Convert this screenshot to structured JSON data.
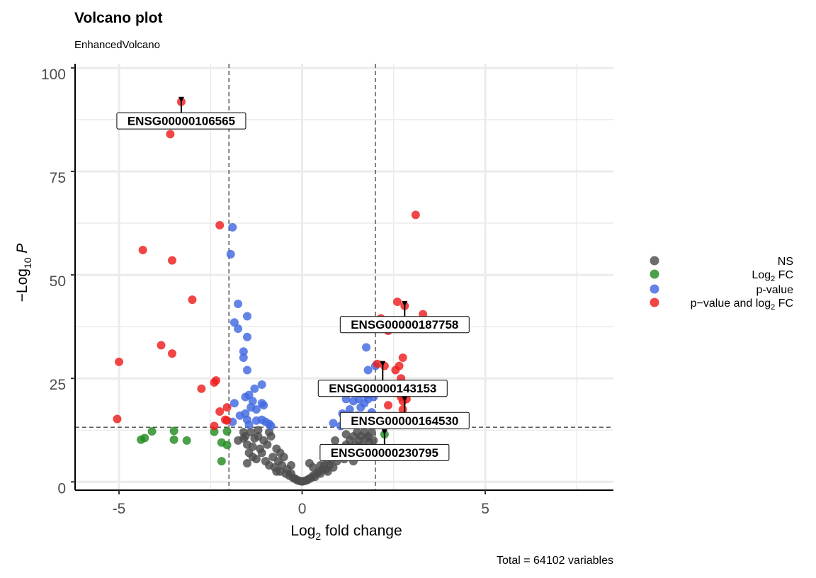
{
  "chart_data": {
    "type": "scatter",
    "title": "Volcano plot",
    "subtitle": "EnhancedVolcano",
    "xlabel": "Log2 fold change",
    "ylabel": "−Log10 P",
    "caption": "Total = 64102 variables",
    "xlim": [
      -6.2,
      8.5
    ],
    "ylim": [
      -2,
      101
    ],
    "x_ticks": [
      -5,
      0,
      5
    ],
    "y_ticks": [
      0,
      25,
      50,
      75,
      100
    ],
    "grid": true,
    "legend_position": "right",
    "thresholds": {
      "log2fc": [
        -2,
        2
      ],
      "neglog10p": 13.2
    },
    "series": [
      {
        "name": "NS",
        "color": "#4d4d4d",
        "points": [
          [
            -1.6,
            10.5
          ],
          [
            -1.55,
            11
          ],
          [
            -1.5,
            9
          ],
          [
            -1.45,
            7
          ],
          [
            -1.4,
            12
          ],
          [
            -1.35,
            8.5
          ],
          [
            -1.3,
            10.5
          ],
          [
            -1.25,
            5.5
          ],
          [
            -1.2,
            11
          ],
          [
            -1.15,
            8
          ],
          [
            -1.1,
            7
          ],
          [
            -1.05,
            10
          ],
          [
            -1.0,
            5
          ],
          [
            -0.95,
            9
          ],
          [
            -0.9,
            4
          ],
          [
            -0.85,
            11
          ],
          [
            -0.8,
            6
          ],
          [
            -0.75,
            3.5
          ],
          [
            -0.7,
            8
          ],
          [
            -0.65,
            5
          ],
          [
            -0.6,
            2.5
          ],
          [
            -0.55,
            4
          ],
          [
            -0.5,
            6
          ],
          [
            -0.45,
            2
          ],
          [
            -0.4,
            3
          ],
          [
            -0.35,
            1.5
          ],
          [
            -0.3,
            2
          ],
          [
            -0.25,
            1
          ],
          [
            -0.2,
            0.8
          ],
          [
            -0.15,
            0.5
          ],
          [
            -0.1,
            0.3
          ],
          [
            -0.05,
            0.2
          ],
          [
            0,
            0.1
          ],
          [
            0.05,
            0.2
          ],
          [
            0.1,
            0.3
          ],
          [
            0.15,
            0.5
          ],
          [
            0.2,
            0.8
          ],
          [
            0.25,
            1
          ],
          [
            0.3,
            1.5
          ],
          [
            0.35,
            1.2
          ],
          [
            0.4,
            2
          ],
          [
            0.45,
            2.5
          ],
          [
            0.5,
            2
          ],
          [
            0.55,
            3
          ],
          [
            0.6,
            4
          ],
          [
            0.65,
            3
          ],
          [
            0.7,
            5
          ],
          [
            0.75,
            4
          ],
          [
            0.8,
            5.5
          ],
          [
            0.85,
            3.5
          ],
          [
            0.9,
            6
          ],
          [
            0.95,
            5
          ],
          [
            1.0,
            7
          ],
          [
            1.05,
            6
          ],
          [
            1.1,
            8
          ],
          [
            1.15,
            5.5
          ],
          [
            1.2,
            9
          ],
          [
            1.25,
            7
          ],
          [
            1.3,
            10
          ],
          [
            1.35,
            8
          ],
          [
            1.4,
            11
          ],
          [
            1.45,
            9
          ],
          [
            1.5,
            12
          ],
          [
            1.55,
            10
          ],
          [
            1.6,
            11
          ],
          [
            1.65,
            9
          ],
          [
            1.7,
            12
          ],
          [
            1.75,
            10.5
          ],
          [
            1.8,
            11
          ],
          [
            1.85,
            9.5
          ],
          [
            1.9,
            12
          ],
          [
            1.95,
            10
          ],
          [
            0.2,
            4.5
          ],
          [
            0.5,
            4
          ],
          [
            -0.9,
            12
          ],
          [
            -1.2,
            12.5
          ],
          [
            -1.6,
            12
          ],
          [
            1.2,
            11.5
          ],
          [
            0.9,
            10
          ],
          [
            0.6,
            8
          ],
          [
            0.3,
            3.5
          ],
          [
            -0.3,
            4
          ],
          [
            -0.6,
            7
          ],
          [
            -1.35,
            6
          ],
          [
            -1.75,
            10
          ],
          [
            1.75,
            7.5
          ],
          [
            -1.5,
            4.5
          ],
          [
            1.4,
            5
          ],
          [
            -0.7,
            2.5
          ],
          [
            0.7,
            2.5
          ]
        ]
      },
      {
        "name": "Log2 FC",
        "color": "#238b22",
        "points": [
          [
            -4.4,
            10.2
          ],
          [
            -4.3,
            10.6
          ],
          [
            -4.1,
            12.2
          ],
          [
            -3.5,
            12.3
          ],
          [
            -3.5,
            10.2
          ],
          [
            -3.15,
            10
          ],
          [
            -2.4,
            12.1
          ],
          [
            -2.2,
            9.5
          ],
          [
            -2.05,
            8.9
          ],
          [
            -2.05,
            12.2
          ],
          [
            -2.2,
            5
          ],
          [
            2.25,
            11.5
          ]
        ]
      },
      {
        "name": "p-value",
        "color": "#4169e1",
        "points": [
          [
            -1.9,
            61.5
          ],
          [
            -1.95,
            55
          ],
          [
            -1.75,
            43
          ],
          [
            -1.85,
            38.5
          ],
          [
            -1.75,
            37
          ],
          [
            -1.5,
            40
          ],
          [
            -1.5,
            35
          ],
          [
            -1.6,
            31.5
          ],
          [
            -1.6,
            30
          ],
          [
            -1.5,
            27
          ],
          [
            -1.1,
            23.5
          ],
          [
            -1.3,
            22.5
          ],
          [
            -1.45,
            21
          ],
          [
            -1.55,
            20.5
          ],
          [
            -1.35,
            19.5
          ],
          [
            -1.1,
            19
          ],
          [
            -1.05,
            18.5
          ],
          [
            -1.25,
            17.5
          ],
          [
            -1.4,
            18
          ],
          [
            -1.55,
            16.5
          ],
          [
            -1.7,
            16
          ],
          [
            -1.25,
            14.8
          ],
          [
            -1.1,
            15
          ],
          [
            -0.9,
            14
          ],
          [
            -0.85,
            13.5
          ],
          [
            -1.0,
            14.5
          ],
          [
            -1.5,
            15
          ],
          [
            -1.45,
            13.8
          ],
          [
            -1.9,
            14.5
          ],
          [
            -1.85,
            19
          ],
          [
            1.75,
            32.5
          ],
          [
            2.0,
            28
          ],
          [
            1.8,
            27
          ],
          [
            1.2,
            20
          ],
          [
            1.4,
            19.5
          ],
          [
            1.55,
            20
          ],
          [
            1.7,
            19
          ],
          [
            1.8,
            20
          ],
          [
            1.95,
            20.5
          ],
          [
            1.9,
            16.8
          ],
          [
            1.5,
            16
          ],
          [
            1.3,
            14.8
          ],
          [
            1.6,
            15
          ],
          [
            1.65,
            14
          ],
          [
            1.1,
            16.5
          ],
          [
            0.85,
            14.2
          ],
          [
            1.05,
            13.5
          ],
          [
            1.85,
            15.5
          ],
          [
            1.6,
            18
          ],
          [
            1.3,
            17.5
          ],
          [
            1.75,
            21
          ],
          [
            2.05,
            22.5
          ],
          [
            1.85,
            22.5
          ]
        ]
      },
      {
        "name": "p−value and log2 FC",
        "color": "#ee1d1d",
        "points": [
          [
            -3.3,
            91.8
          ],
          [
            -3.6,
            84
          ],
          [
            -2.25,
            62
          ],
          [
            -4.35,
            56
          ],
          [
            -3.55,
            53.5
          ],
          [
            -3.0,
            44
          ],
          [
            -3.85,
            33
          ],
          [
            -3.55,
            31
          ],
          [
            -5.0,
            29
          ],
          [
            -2.4,
            24
          ],
          [
            -2.35,
            24.5
          ],
          [
            -2.75,
            22.5
          ],
          [
            -2.05,
            18
          ],
          [
            -2.25,
            17
          ],
          [
            -5.05,
            15.2
          ],
          [
            -2.05,
            14.8
          ],
          [
            -2.1,
            15
          ],
          [
            -2.4,
            13.5
          ],
          [
            3.1,
            64.5
          ],
          [
            2.6,
            43.5
          ],
          [
            2.8,
            42.5
          ],
          [
            3.3,
            40.5
          ],
          [
            2.15,
            39.5
          ],
          [
            2.35,
            36.5
          ],
          [
            2.75,
            30
          ],
          [
            2.65,
            28
          ],
          [
            2.55,
            27
          ],
          [
            2.25,
            28
          ],
          [
            2.05,
            28.5
          ],
          [
            2.7,
            25
          ],
          [
            2.3,
            23
          ],
          [
            2.55,
            21.5
          ],
          [
            2.7,
            20.5
          ],
          [
            2.75,
            19.5
          ],
          [
            2.35,
            18.5
          ],
          [
            2.85,
            20
          ],
          [
            2.75,
            17.5
          ]
        ]
      }
    ],
    "labels": [
      {
        "text": "ENSG00000106565",
        "x": -3.3,
        "y": 91.8,
        "lx": -3.3,
        "ly": 87.2
      },
      {
        "text": "ENSG00000187758",
        "x": 2.8,
        "y": 42.5,
        "lx": 2.8,
        "ly": 38
      },
      {
        "text": "ENSG00000143153",
        "x": 2.2,
        "y": 28,
        "lx": 2.2,
        "ly": 22.6
      },
      {
        "text": "ENSG00000164530",
        "x": 2.8,
        "y": 19.5,
        "lx": 2.8,
        "ly": 14.8
      },
      {
        "text": "ENSG00000230795",
        "x": 2.25,
        "y": 11.5,
        "lx": 2.25,
        "ly": 7.1
      }
    ]
  }
}
